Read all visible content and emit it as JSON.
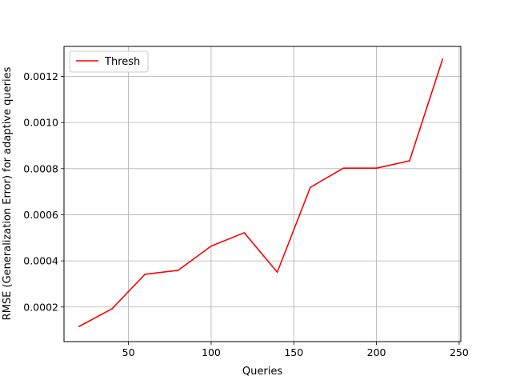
{
  "chart_data": {
    "type": "line",
    "title": "",
    "xlabel": "Queries",
    "ylabel": "RMSE (Generalization Error) for adaptive queries",
    "xlim": [
      11,
      251
    ],
    "ylim": [
      5e-05,
      0.00133
    ],
    "xticks": [
      50,
      100,
      150,
      200,
      250
    ],
    "yticks": [
      0.0002,
      0.0004,
      0.0006,
      0.0008,
      0.001,
      0.0012
    ],
    "ytick_labels": [
      "0.0002",
      "0.0004",
      "0.0006",
      "0.0008",
      "0.0010",
      "0.0012"
    ],
    "grid": true,
    "legend_position": "top-left",
    "x": [
      20,
      40,
      60,
      80,
      100,
      120,
      140,
      160,
      180,
      200,
      220,
      240
    ],
    "series": [
      {
        "name": "Thresh",
        "color": "#ff0000",
        "values": [
          0.000115,
          0.000192,
          0.000342,
          0.000359,
          0.000464,
          0.000522,
          0.000351,
          0.000719,
          0.000802,
          0.000802,
          0.000834,
          0.001275
        ]
      }
    ]
  }
}
